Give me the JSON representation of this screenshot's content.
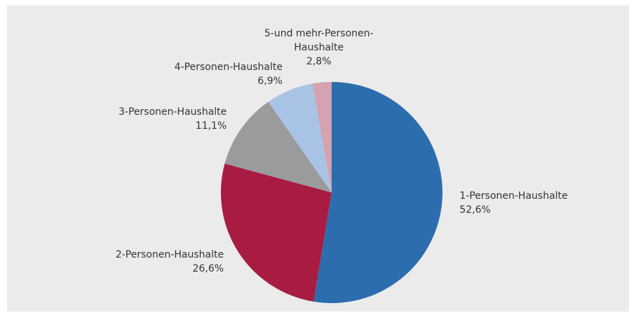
{
  "chart_data": {
    "type": "pie",
    "categories": [
      "1-Personen-Haushalte",
      "2-Personen-Haushalte",
      "3-Personen-Haushalte",
      "4-Personen-Haushalte",
      "5-und mehr-Personen-Haushalte"
    ],
    "values": [
      52.6,
      26.6,
      11.1,
      6.9,
      2.8
    ],
    "value_labels": [
      "52,6%",
      "26,6%",
      "11,1%",
      "6,9%",
      "2,8%"
    ],
    "colors": [
      "#2c6dae",
      "#a81c42",
      "#9a9b9d",
      "#a9c3e6",
      "#d4a2b0"
    ]
  }
}
